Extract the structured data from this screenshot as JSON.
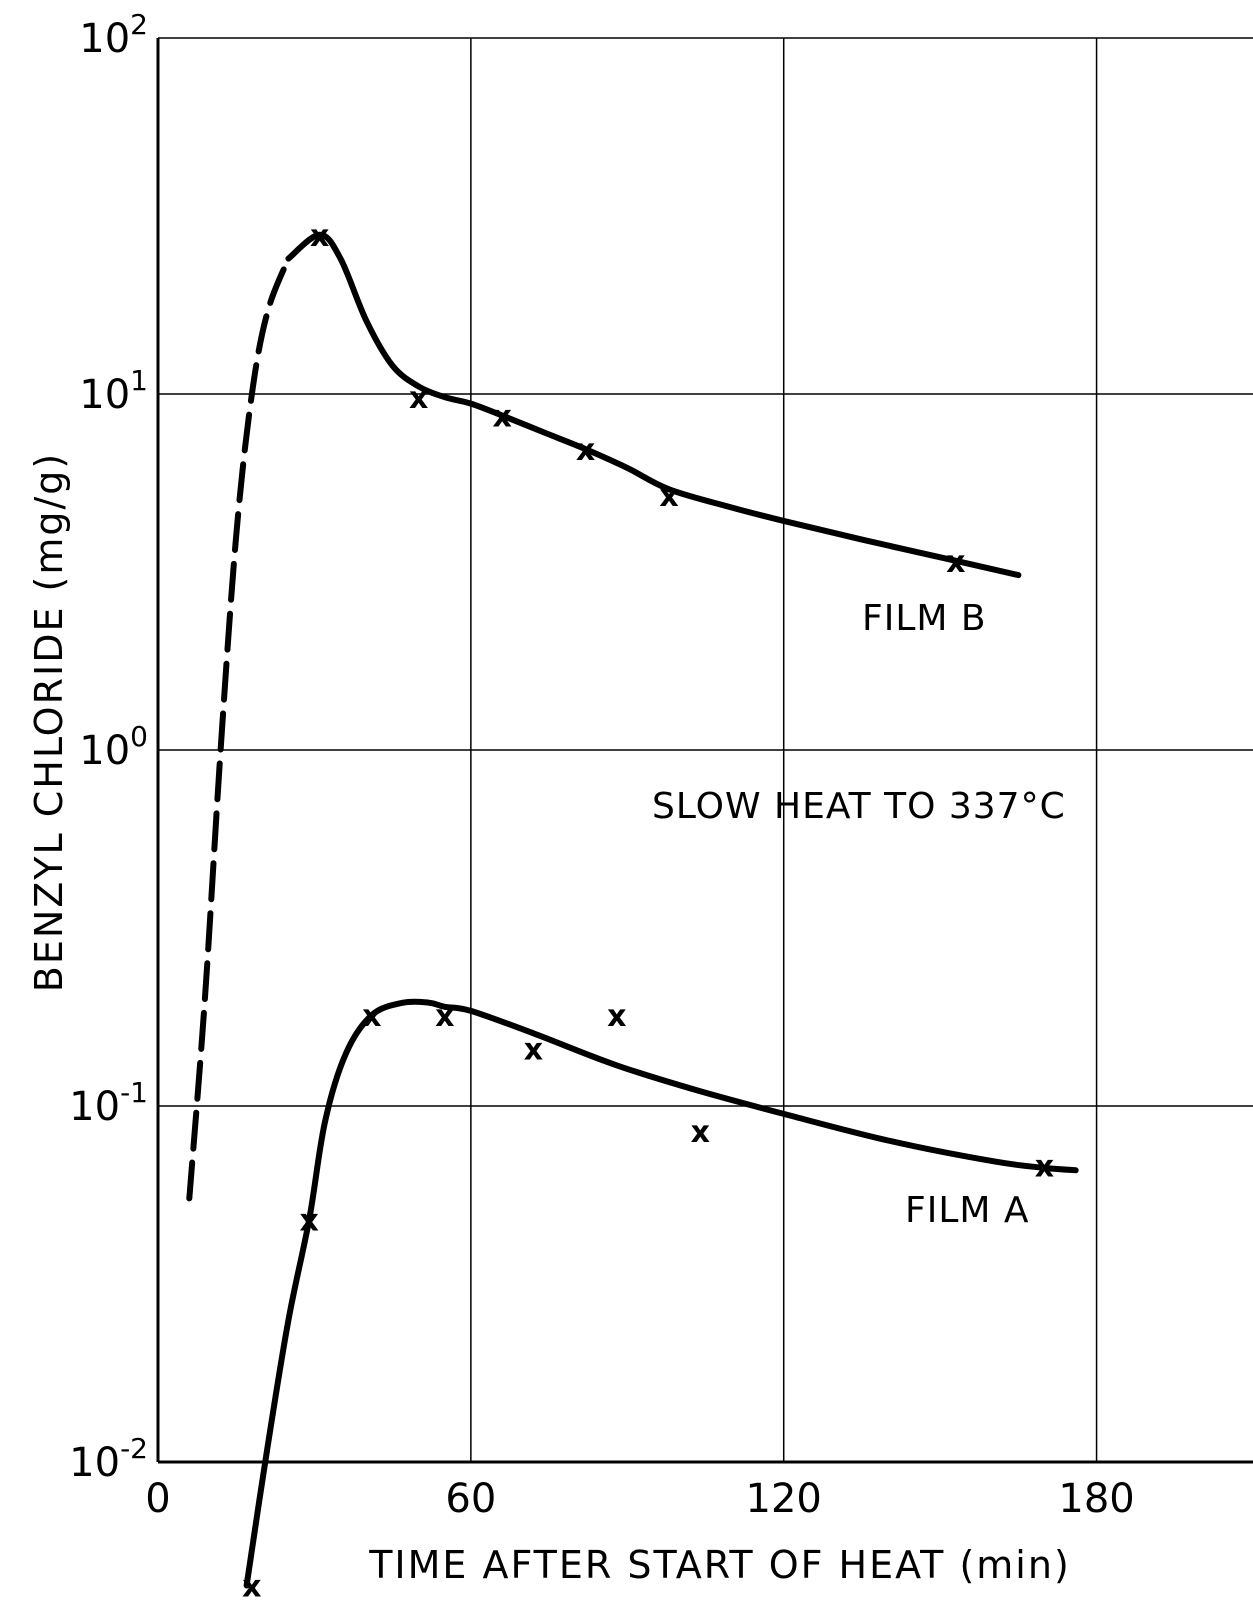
{
  "chart_data": {
    "type": "line",
    "xlabel": "TIME AFTER START OF HEAT (min)",
    "ylabel": "BENZYL CHLORIDE (mg/g)",
    "xlim": [
      0,
      210
    ],
    "ylim": [
      0.01,
      100
    ],
    "yscale": "log",
    "grid": true,
    "x_ticks": [
      "0",
      "60",
      "120",
      "180"
    ],
    "y_ticks": [
      {
        "base": "10",
        "exp": "2"
      },
      {
        "base": "10",
        "exp": "1"
      },
      {
        "base": "10",
        "exp": "0"
      },
      {
        "base": "10",
        "exp": "-1"
      },
      {
        "base": "10",
        "exp": "-2"
      }
    ],
    "annotation": "SLOW HEAT TO 337°C",
    "series": [
      {
        "name": "FILM B",
        "points": [
          [
            31,
            28
          ],
          [
            50,
            9.8
          ],
          [
            66,
            8.7
          ],
          [
            82,
            7.0
          ],
          [
            98,
            5.2
          ],
          [
            153,
            3.4
          ]
        ],
        "curve": [
          [
            6,
            0.055
          ],
          [
            9,
            0.2
          ],
          [
            12,
            1.0
          ],
          [
            15,
            4.0
          ],
          [
            18,
            10
          ],
          [
            21,
            17
          ],
          [
            25,
            24
          ],
          [
            31,
            28
          ],
          [
            35,
            24
          ],
          [
            40,
            16
          ],
          [
            45,
            12
          ],
          [
            50,
            10.5
          ],
          [
            55,
            9.8
          ],
          [
            60,
            9.4
          ],
          [
            66,
            8.7
          ],
          [
            74,
            7.8
          ],
          [
            82,
            7.0
          ],
          [
            90,
            6.2
          ],
          [
            98,
            5.4
          ],
          [
            110,
            4.8
          ],
          [
            120,
            4.4
          ],
          [
            135,
            3.9
          ],
          [
            153,
            3.4
          ],
          [
            165,
            3.1
          ]
        ]
      },
      {
        "name": "FILM A",
        "points": [
          [
            18,
            0.0045
          ],
          [
            29,
            0.048
          ],
          [
            41,
            0.18
          ],
          [
            55,
            0.18
          ],
          [
            72,
            0.145
          ],
          [
            88,
            0.18
          ],
          [
            104,
            0.085
          ],
          [
            170,
            0.068
          ]
        ],
        "curve": [
          [
            17,
            0.0045
          ],
          [
            21,
            0.011
          ],
          [
            25,
            0.025
          ],
          [
            29,
            0.048
          ],
          [
            32,
            0.09
          ],
          [
            36,
            0.14
          ],
          [
            41,
            0.18
          ],
          [
            47,
            0.195
          ],
          [
            52,
            0.195
          ],
          [
            55,
            0.19
          ],
          [
            60,
            0.185
          ],
          [
            72,
            0.16
          ],
          [
            88,
            0.13
          ],
          [
            104,
            0.11
          ],
          [
            120,
            0.095
          ],
          [
            140,
            0.08
          ],
          [
            160,
            0.07
          ],
          [
            170,
            0.067
          ],
          [
            176,
            0.066
          ]
        ]
      }
    ]
  }
}
